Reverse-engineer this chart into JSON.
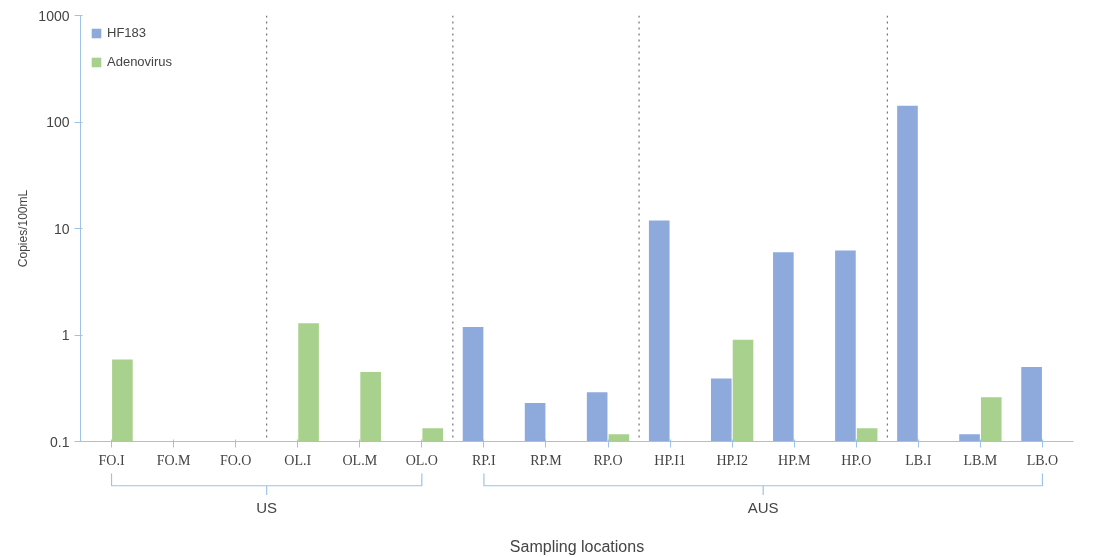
{
  "chart_data": {
    "type": "bar",
    "xlabel": "Sampling locations",
    "ylabel": "Copies/100mL",
    "categories": [
      "FO.I",
      "FO.M",
      "FO.O",
      "OL.I",
      "OL.M",
      "OL.O",
      "RP.I",
      "RP.M",
      "RP.O",
      "HP.I1",
      "HP.I2",
      "HP.M",
      "HP.O",
      "LB.I",
      "LB.M",
      "LB.O"
    ],
    "series": [
      {
        "name": "HF183",
        "color": "#8eaadc",
        "values": [
          null,
          null,
          null,
          null,
          null,
          null,
          1.19,
          0.23,
          0.29,
          11.9,
          0.39,
          6.0,
          6.2,
          142,
          0.117,
          0.5
        ]
      },
      {
        "name": "Adenovirus",
        "color": "#a9d18e",
        "values": [
          0.59,
          null,
          null,
          1.29,
          0.45,
          0.133,
          null,
          null,
          0.117,
          null,
          0.9,
          null,
          0.133,
          null,
          0.26,
          null
        ]
      }
    ],
    "log": "y",
    "ylim": [
      0.1,
      1000
    ],
    "yticks": [
      0.1,
      1,
      10,
      100,
      1000
    ],
    "grid": false,
    "legend": "top left",
    "annotations": [
      "US",
      "AUS"
    ]
  }
}
